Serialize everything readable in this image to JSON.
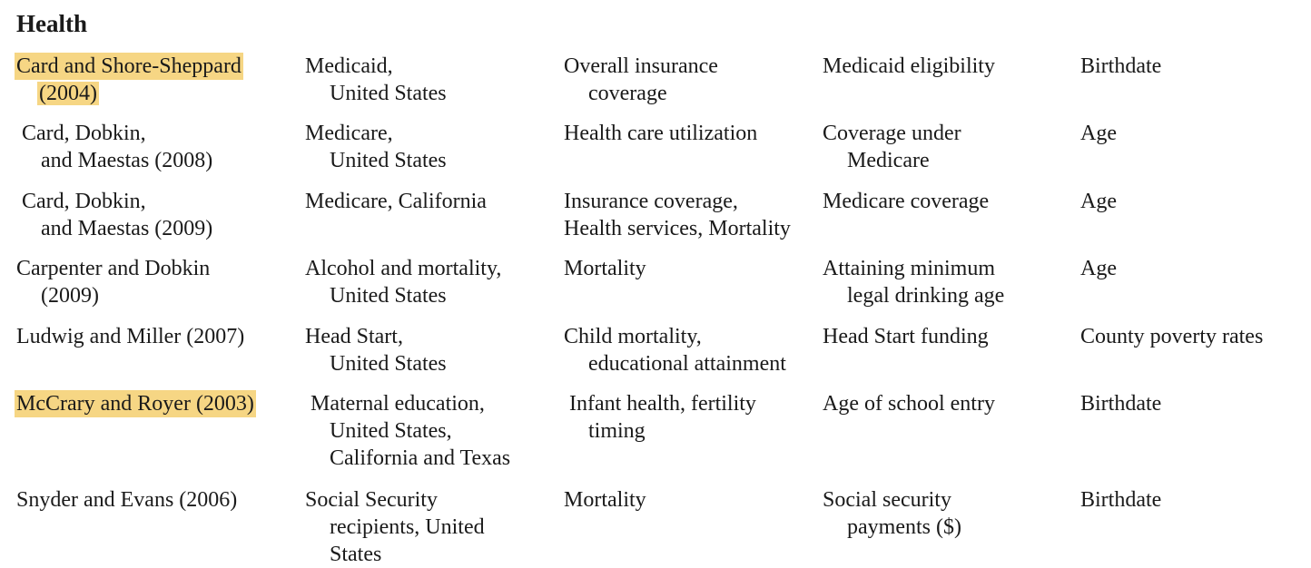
{
  "section_title": "Health",
  "rows": [
    {
      "study": [
        "Card and Shore-Sheppard",
        "(2004)"
      ],
      "context": [
        "Medicaid,",
        "United States"
      ],
      "outcomes": [
        "Overall insurance",
        "coverage"
      ],
      "treatment": [
        "Medicaid eligibility"
      ],
      "forcing": [
        "Birthdate"
      ]
    },
    {
      "study": [
        "Card, Dobkin,",
        "and Maestas (2008)"
      ],
      "context": [
        "Medicare,",
        "United States"
      ],
      "outcomes": [
        "Health care utilization"
      ],
      "treatment": [
        "Coverage under",
        "Medicare"
      ],
      "forcing": [
        "Age"
      ]
    },
    {
      "study": [
        "Card, Dobkin,",
        "and Maestas (2009)"
      ],
      "context": [
        "Medicare, California"
      ],
      "outcomes": [
        "Insurance coverage,",
        "Health services, Mortality"
      ],
      "treatment": [
        "Medicare coverage"
      ],
      "forcing": [
        "Age"
      ]
    },
    {
      "study": [
        "Carpenter and Dobkin",
        "(2009)"
      ],
      "context": [
        "Alcohol and mortality,",
        "United States"
      ],
      "outcomes": [
        "Mortality"
      ],
      "treatment": [
        "Attaining minimum",
        "legal drinking age"
      ],
      "forcing": [
        "Age"
      ]
    },
    {
      "study": [
        "Ludwig and Miller (2007)"
      ],
      "context": [
        "Head Start,",
        "United States"
      ],
      "outcomes": [
        "Child mortality,",
        "educational attainment"
      ],
      "treatment": [
        "Head Start funding"
      ],
      "forcing": [
        "County poverty rates"
      ]
    },
    {
      "study": [
        "McCrary and Royer (2003)"
      ],
      "context": [
        "Maternal education,",
        "United States,",
        "California and Texas"
      ],
      "outcomes": [
        "Infant health, fertility",
        "timing"
      ],
      "treatment": [
        "Age of school entry"
      ],
      "forcing": [
        "Birthdate"
      ]
    },
    {
      "study": [
        "Snyder and Evans (2006)"
      ],
      "context": [
        "Social Security",
        "recipients, United",
        "States"
      ],
      "outcomes": [
        "Mortality"
      ],
      "treatment": [
        "Social security",
        "payments ($)"
      ],
      "forcing": [
        "Birthdate"
      ]
    }
  ]
}
